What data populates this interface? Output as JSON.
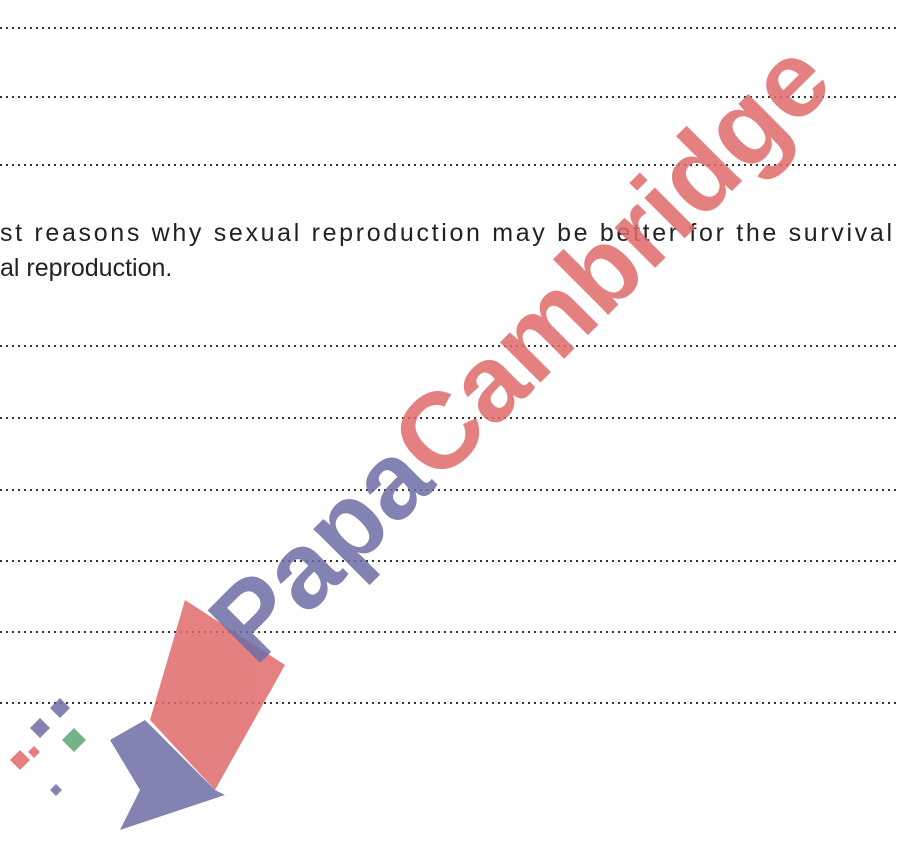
{
  "question": {
    "lines": [
      "st reasons why sexual reproduction may be better for the survival",
      "al reproduction."
    ]
  },
  "watermark": {
    "first": "Papa",
    "second": "Cambridge"
  }
}
